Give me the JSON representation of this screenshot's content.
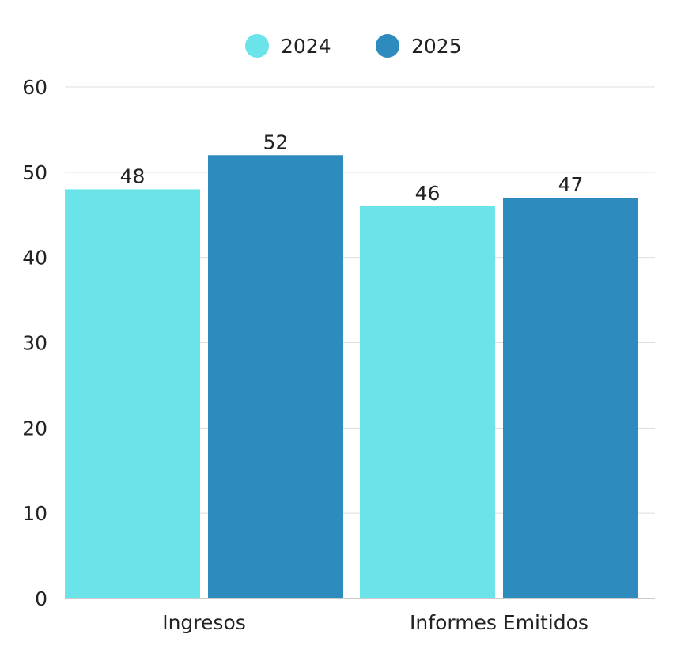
{
  "chart_data": {
    "type": "bar",
    "categories": [
      "Ingresos",
      "Informes Emitidos"
    ],
    "series": [
      {
        "name": "2024",
        "values": [
          48,
          46
        ],
        "color": "#6ae4e8"
      },
      {
        "name": "2025",
        "values": [
          52,
          47
        ],
        "color": "#2d8bbd"
      }
    ],
    "ylim": [
      0,
      60
    ],
    "yticks": [
      0,
      10,
      20,
      30,
      40,
      50,
      60
    ],
    "grid": true,
    "legend": "top-center",
    "title": "",
    "xlabel": "",
    "ylabel": ""
  }
}
